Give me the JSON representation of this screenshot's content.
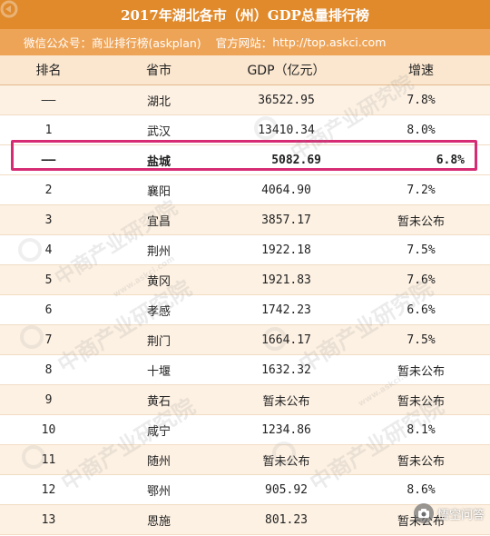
{
  "title": "2017年湖北各市（州）GDP总量排行榜",
  "subtitle": {
    "wechat_label": "微信公众号：",
    "wechat_value": "商业排行榜(askplan)",
    "site_label": "官方网站：",
    "site_value": "http://top.askci.com"
  },
  "columns": [
    "排名",
    "省市",
    "GDP（亿元）",
    "增速"
  ],
  "rows": [
    {
      "rank": "——",
      "city": "湖北",
      "gdp": "36522.95",
      "growth": "7.8%"
    },
    {
      "rank": "1",
      "city": "武汉",
      "gdp": "13410.34",
      "growth": "8.0%"
    },
    {
      "rank": "——",
      "city": "盐城",
      "gdp": "5082.69",
      "growth": "6.8%"
    },
    {
      "rank": "2",
      "city": "襄阳",
      "gdp": "4064.90",
      "growth": "7.2%"
    },
    {
      "rank": "3",
      "city": "宜昌",
      "gdp": "3857.17",
      "growth": "暂未公布"
    },
    {
      "rank": "4",
      "city": "荆州",
      "gdp": "1922.18",
      "growth": "7.5%"
    },
    {
      "rank": "5",
      "city": "黄冈",
      "gdp": "1921.83",
      "growth": "7.6%"
    },
    {
      "rank": "6",
      "city": "孝感",
      "gdp": "1742.23",
      "growth": "6.6%"
    },
    {
      "rank": "7",
      "city": "荆门",
      "gdp": "1664.17",
      "growth": "7.5%"
    },
    {
      "rank": "8",
      "city": "十堰",
      "gdp": "1632.32",
      "growth": "暂未公布"
    },
    {
      "rank": "9",
      "city": "黄石",
      "gdp": "暂未公布",
      "growth": "暂未公布"
    },
    {
      "rank": "10",
      "city": "咸宁",
      "gdp": "1234.86",
      "growth": "8.1%"
    },
    {
      "rank": "11",
      "city": "随州",
      "gdp": "暂未公布",
      "growth": "暂未公布"
    },
    {
      "rank": "12",
      "city": "鄂州",
      "gdp": "905.92",
      "growth": "8.6%"
    },
    {
      "rank": "13",
      "city": "恩施",
      "gdp": "801.23",
      "growth": "暂未公布"
    }
  ],
  "watermark": {
    "text": "中商产业研究院",
    "url": "www.askci.com"
  },
  "footer": {
    "text": "悟空问答"
  },
  "colors": {
    "title_bg": "#e08a2c",
    "subtitle_bg": "#eea457",
    "header_bg": "#fbe7cf",
    "stripe_bg": "#fdf1e3",
    "highlight_border": "#d62c74"
  }
}
